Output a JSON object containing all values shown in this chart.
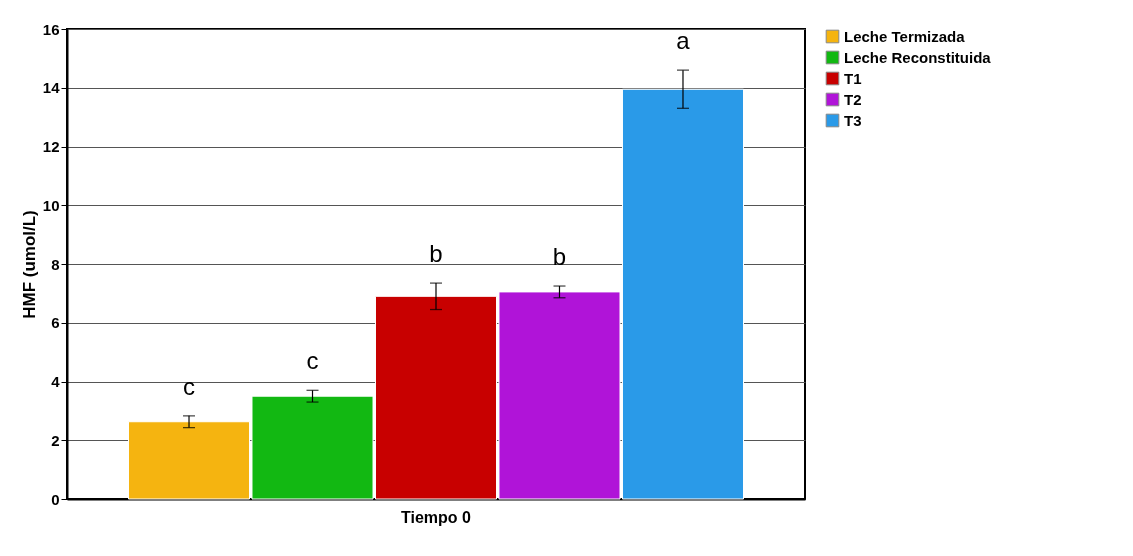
{
  "chart_data": {
    "type": "bar",
    "ylabel": "HMF (umol/L)",
    "categories": [
      "Tiempo 0"
    ],
    "series": [
      {
        "name": "Leche Termizada",
        "color": "#f5b410",
        "values": [
          2.63
        ],
        "errors": [
          0.2
        ],
        "value_labels": [
          "c"
        ]
      },
      {
        "name": "Leche Reconstituida",
        "color": "#12b812",
        "values": [
          3.5
        ],
        "errors": [
          0.2
        ],
        "value_labels": [
          "c"
        ]
      },
      {
        "name": "T1",
        "color": "#c80000",
        "values": [
          6.9
        ],
        "errors": [
          0.45
        ],
        "value_labels": [
          "b"
        ]
      },
      {
        "name": "T2",
        "color": "#b014d8",
        "values": [
          7.05
        ],
        "errors": [
          0.2
        ],
        "value_labels": [
          "b"
        ]
      },
      {
        "name": "T3",
        "color": "#2a9ae8",
        "values": [
          13.95
        ],
        "errors": [
          0.65
        ],
        "value_labels": [
          "a"
        ]
      }
    ],
    "ylim": [
      0,
      16
    ],
    "yticks": [
      0,
      2,
      4,
      6,
      8,
      10,
      12,
      14,
      16
    ],
    "grid": "y",
    "legend": "right"
  }
}
